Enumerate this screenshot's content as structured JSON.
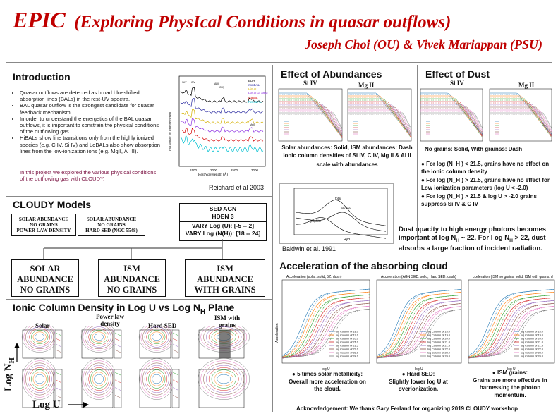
{
  "header": {
    "title_main": "EPIC",
    "title_sub": "(Exploring PhysIcal Conditions in quasar outflows)",
    "authors": "Joseph Choi (OU) & Vivek Mariappan (PSU)"
  },
  "intro": {
    "heading": "Introduction",
    "bullets": [
      "Quasar outflows are detected as broad blueshifted absorption lines (BALs) in the rest-UV spectra.",
      "BAL quasar outflow is the strongest candidate for quasar feedback mechanism.",
      "In order to understand the energetics of the BAL quasar outflows, it is important to constrain the physical conditions of the outflowing gas.",
      "HiBALs show line transitions only from the highly ionized species (e.g. C IV, Si IV) and LoBALs also show absorption lines from the low-ionization ions (e.g. MgII, Al III)."
    ],
    "note": "In this project we explored the various physical conditions of the outflowing gas with CLOUDY.",
    "figure": {
      "ylabel": "Flux Density per Unit Wavelength",
      "xlabel": "Rest Wavelength (Å)",
      "legend": [
        "EDR",
        "nonBAL",
        "HiBAL",
        "HiBAL+LoBAL",
        "LoBAL",
        "FeLoBAL"
      ],
      "legend_colors": [
        "#000000",
        "#2a2aa0",
        "#d4b000",
        "#8a2be2",
        "#d40000",
        "#00c0d0"
      ],
      "line_labels": [
        "SiIV",
        "CIV",
        "AlIII",
        "CIII]",
        "MgII"
      ],
      "x_ticks": [
        "1500",
        "2000",
        "2500",
        "3000"
      ],
      "caption": "Reichard et al  2003"
    }
  },
  "cloudy": {
    "heading": "CLOUDY Models",
    "box1": [
      "SOLAR ABUNDANCE",
      "NO GRAINS",
      "POWER LAW DENSITY"
    ],
    "box2": [
      "SOLAR ABUNDANCE",
      "NO GRAINS",
      "HARD SED (NGC 5548)"
    ],
    "box3": [
      "SED AGN",
      "HDEN 3",
      "VARY Log (U):  [-5 -- 2]",
      "VARY Log (N(H)):  [18 -- 24]"
    ],
    "big_boxes": [
      [
        "SOLAR",
        "ABUNDANCE",
        "NO GRAINS"
      ],
      [
        "ISM",
        "ABUNDANCE",
        "NO GRAINS"
      ],
      [
        "ISM",
        "ABUNDANCE",
        "WITH GRAINS"
      ]
    ]
  },
  "ionic": {
    "heading": "Ionic Column Density in Log U vs Log N",
    "heading_sub": "H",
    "heading_tail": " Plane",
    "col_labels": [
      "Solar",
      "Power law density",
      "Hard SED",
      "ISM with grains"
    ],
    "y_axis": "Log N",
    "y_axis_sub": "H",
    "x_axis": "Log U"
  },
  "abundances": {
    "heading": "Effect of Abundances",
    "panels": [
      "Si IV",
      "Mg II"
    ],
    "caption": [
      "Solar abundances: Solid, ISM abundances: Dash",
      "Ionic column densities of Si IV, C IV, Mg II & Al II",
      "scale with abundances"
    ]
  },
  "dust": {
    "heading": "Effect of Dust",
    "panels": [
      "Si IV",
      "Mg II"
    ],
    "caption": "No grains: Solid,  With grainss: Dash",
    "bullets": [
      "For log (N_H ) < 21.5, grains have no effect on the  ionic column density",
      "For log (N_H ) > 21.5, grains have no effect for Low ionization parameters (log U < -2.0)",
      "For log (N_H ) > 21.5 & log U > -2.0 grains suppress Si IV & C IV"
    ]
  },
  "opacity": {
    "labels": [
      "total",
      "silicate",
      "graphite"
    ],
    "caption": "Baldwin et al. 1991",
    "xlabel": "Ryd",
    "text_a": "Dust opacity to high energy photons  becomes important at log N",
    "text_sub": "H",
    "text_b": " ~ 22.  For l og N",
    "text_c": " > 22, dust absorbs a large fraction of incident radiation."
  },
  "acceleration": {
    "heading": "Acceleration of the absorbing cloud",
    "panel_titles": [
      "Acceleration (solar: solid, 5Z: dash)",
      "Acceleration (AGN SED: solid, Hard SED: dash)",
      "cceleration (ISM no grains: solid, ISM with grains: d"
    ],
    "ylabel": "Acceleration",
    "xlabel": "log U",
    "legend": [
      "log Column of 18.0",
      "log Column of 19.0",
      "log Column of 20.0",
      "log Column of 21.0",
      "log Column of 21.5",
      "log Column of 22.0",
      "log Column of 23.0",
      "log Column of 24.0"
    ],
    "colors": [
      "#1f77b4",
      "#ff7f0e",
      "#2ca02c",
      "#d62728",
      "#9467bd",
      "#8c564b",
      "#e377c2",
      "#7f7f7f"
    ],
    "findings": [
      [
        "5 times solar  metallicity:",
        "Overall more acceleration on",
        "the cloud."
      ],
      [
        "Hard SED:",
        "Slightly lower log U at",
        "overionization."
      ],
      [
        "ISM grains:",
        "Grains are more effective in",
        "harnessing the photon",
        "momentum."
      ]
    ],
    "ack": "Acknowledgement: We thank Gary Ferland for organizing 2019 CLOUDY workshop"
  }
}
